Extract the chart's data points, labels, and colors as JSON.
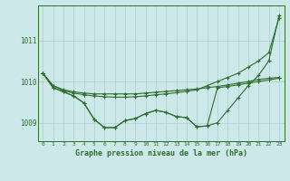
{
  "xlabel": "Graphe pression niveau de la mer (hPa)",
  "background_color": "#cce8e8",
  "grid_color": "#aacfcf",
  "line_color": "#2d6e2d",
  "x": [
    0,
    1,
    2,
    3,
    4,
    5,
    6,
    7,
    8,
    9,
    10,
    11,
    12,
    13,
    14,
    15,
    16,
    17,
    18,
    19,
    20,
    21,
    22,
    23
  ],
  "line1": [
    1010.2,
    1009.9,
    1009.8,
    1009.75,
    1009.72,
    1009.7,
    1009.7,
    1009.7,
    1009.7,
    1009.7,
    1009.72,
    1009.74,
    1009.76,
    1009.78,
    1009.8,
    1009.82,
    1009.85,
    1009.88,
    1009.92,
    1009.96,
    1010.0,
    1010.05,
    1010.08,
    1010.1
  ],
  "line2": [
    1010.2,
    1009.9,
    1009.78,
    1009.72,
    1009.68,
    1009.65,
    1009.63,
    1009.62,
    1009.62,
    1009.63,
    1009.65,
    1009.68,
    1009.7,
    1009.73,
    1009.76,
    1009.8,
    1009.9,
    1010.0,
    1010.1,
    1010.2,
    1010.35,
    1010.5,
    1010.7,
    1011.55
  ],
  "line3": [
    1010.2,
    1009.85,
    1009.75,
    1009.65,
    1009.48,
    1009.08,
    1008.88,
    1008.88,
    1009.05,
    1009.1,
    1009.22,
    1009.3,
    1009.25,
    1009.15,
    1009.12,
    1008.9,
    1008.92,
    1009.0,
    1009.3,
    1009.6,
    1009.9,
    1010.15,
    1010.5,
    1011.6
  ],
  "line4": [
    1010.2,
    1009.85,
    1009.75,
    1009.65,
    1009.48,
    1009.08,
    1008.88,
    1008.88,
    1009.05,
    1009.1,
    1009.22,
    1009.3,
    1009.25,
    1009.15,
    1009.12,
    1008.9,
    1008.92,
    1009.85,
    1009.88,
    1009.92,
    1009.96,
    1010.0,
    1010.04,
    1010.08
  ],
  "ylim": [
    1008.55,
    1011.85
  ],
  "yticks": [
    1009,
    1010,
    1011
  ],
  "figsize": [
    3.2,
    2.0
  ],
  "dpi": 100
}
